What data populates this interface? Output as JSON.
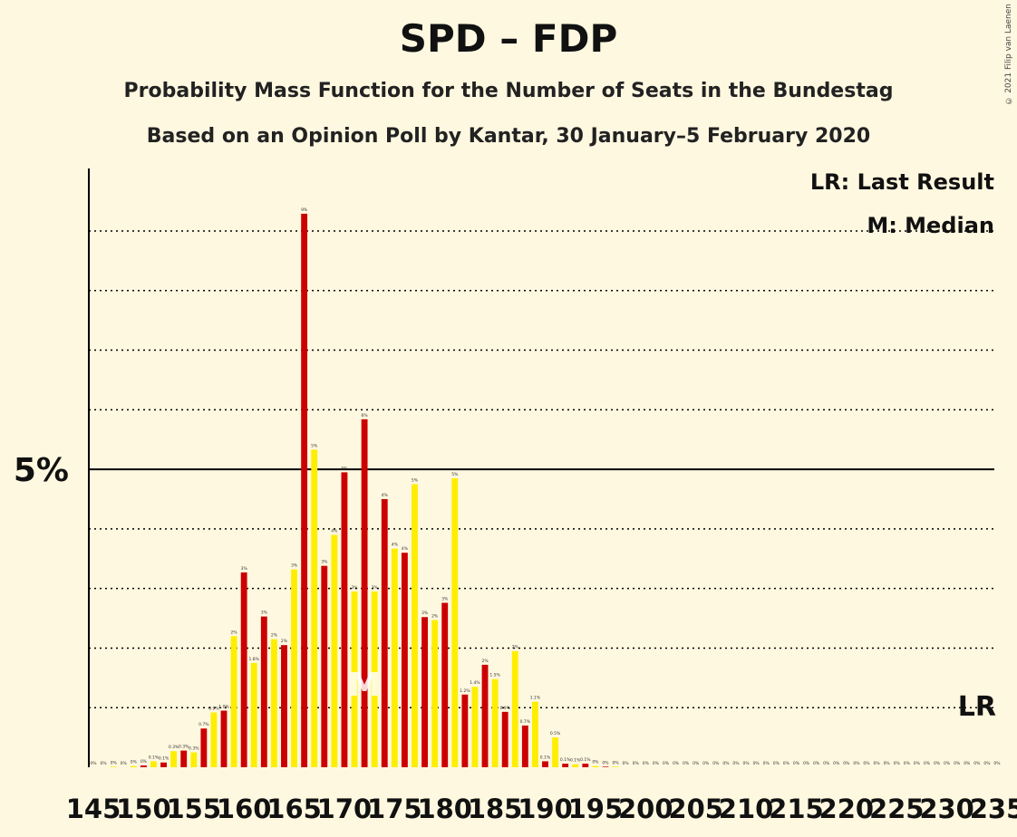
{
  "title": "SPD – FDP",
  "subtitle": "Probability Mass Function for the Number of Seats in the Bundestag",
  "subtitle2": "Based on an Opinion Poll by Kantar, 30 January–5 February 2020",
  "copyright": "© 2021 Filip van Laenen",
  "legend": {
    "last_result": "LR: Last Result",
    "median": "M: Median"
  },
  "colors": {
    "odd": "#FFEE00",
    "even": "#CC0000",
    "background": "#FFF8E0",
    "grid": "#000000"
  },
  "chart_data": {
    "type": "bar",
    "title": "SPD – FDP",
    "xlabel": "",
    "ylabel": "",
    "x_min": 145,
    "x_max": 235,
    "x_tick_step": 5,
    "y_major_tick": 5,
    "y_major_tick_label": "5%",
    "y_grid_step": 1,
    "ylim": [
      0,
      10
    ],
    "median_seat": 172,
    "median_label": "M",
    "last_result_seat": 233,
    "last_result_label": "LR",
    "grid": true,
    "legend_position": "top-right",
    "seats": [
      145,
      146,
      147,
      148,
      149,
      150,
      151,
      152,
      153,
      154,
      155,
      156,
      157,
      158,
      159,
      160,
      161,
      162,
      163,
      164,
      165,
      166,
      167,
      168,
      169,
      170,
      171,
      172,
      173,
      174,
      175,
      176,
      177,
      178,
      179,
      180,
      181,
      182,
      183,
      184,
      185,
      186,
      187,
      188,
      189,
      190,
      191,
      192,
      193,
      194,
      195,
      196,
      197,
      198,
      199,
      200,
      201,
      202,
      203,
      204,
      205,
      206,
      207,
      208,
      209,
      210,
      211,
      212,
      213,
      214,
      215,
      216,
      217,
      218,
      219,
      220,
      221,
      222,
      223,
      224,
      225,
      226,
      227,
      228,
      229,
      230,
      231,
      232,
      233,
      234,
      235
    ],
    "values": [
      0,
      0,
      0.01,
      0,
      0.02,
      0.03,
      0.1,
      0.08,
      0.27,
      0.28,
      0.25,
      0.65,
      0.92,
      0.95,
      2.2,
      3.27,
      1.75,
      2.53,
      2.15,
      2.05,
      3.32,
      9.29,
      5.33,
      3.38,
      3.9,
      4.95,
      2.95,
      5.84,
      2.95,
      4.5,
      3.67,
      3.6,
      4.75,
      2.52,
      2.47,
      2.76,
      4.85,
      1.22,
      1.35,
      1.72,
      1.48,
      0.93,
      1.95,
      0.7,
      1.1,
      0.1,
      0.5,
      0.06,
      0.05,
      0.06,
      0.02,
      0.01,
      0.01,
      0,
      0,
      0,
      0,
      0,
      0,
      0,
      0,
      0,
      0,
      0,
      0,
      0,
      0,
      0,
      0,
      0,
      0,
      0,
      0,
      0,
      0,
      0,
      0,
      0,
      0,
      0,
      0,
      0,
      0,
      0,
      0,
      0,
      0,
      0,
      0,
      0,
      0
    ],
    "bar_labels": [
      "0%",
      "0%",
      "0%",
      "0%",
      "0%",
      "0%",
      "0.1%",
      "0.1%",
      "0.3%",
      "0.3%",
      "0.3%",
      "0.7%",
      "0.9%",
      "1.0%",
      "2%",
      "3%",
      "1.8%",
      "3%",
      "2%",
      "2%",
      "3%",
      "9%",
      "5%",
      "3%",
      "4%",
      "5%",
      "3%",
      "6%",
      "3%",
      "4%",
      "4%",
      "4%",
      "5%",
      "3%",
      "2%",
      "3%",
      "5%",
      "1.2%",
      "1.4%",
      "2%",
      "1.5%",
      "0.9%",
      "2%",
      "0.7%",
      "1.1%",
      "0.1%",
      "0.5%",
      "0.1%",
      "0.1%",
      "0.1%",
      "0%",
      "0%",
      "0%",
      "0%",
      "0%",
      "0%",
      "0%",
      "0%",
      "0%",
      "0%",
      "0%",
      "0%",
      "0%",
      "0%",
      "0%",
      "0%",
      "0%",
      "0%",
      "0%",
      "0%",
      "0%",
      "0%",
      "0%",
      "0%",
      "0%",
      "0%",
      "0%",
      "0%",
      "0%",
      "0%",
      "0%",
      "0%",
      "0%",
      "0%",
      "0%",
      "0%",
      "0%",
      "0%",
      "0%",
      "0%",
      "0%"
    ]
  }
}
